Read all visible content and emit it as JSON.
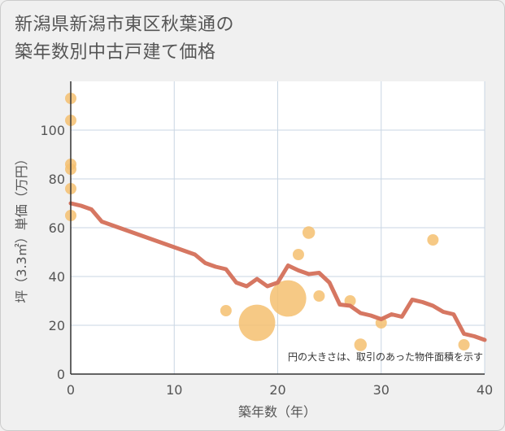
{
  "title_line1": "新潟県新潟市東区秋葉通の",
  "title_line2": "築年数別中古戸建て価格",
  "chart_data": {
    "type": "scatter",
    "title": "新潟県新潟市東区秋葉通の 築年数別中古戸建て価格",
    "xlabel": "築年数（年）",
    "ylabel": "坪（3.3㎡）単価（万円）",
    "xlim": [
      0,
      40
    ],
    "ylim": [
      0,
      120
    ],
    "xticks": [
      0,
      10,
      20,
      30,
      40
    ],
    "yticks": [
      0,
      20,
      40,
      60,
      80,
      100
    ],
    "grid": true,
    "note": "円の大きさは、取引のあった物件面積を示す",
    "colors": {
      "bubble": "#f5c070",
      "line": "#d4705a",
      "plot_bg": "#ffffff",
      "grid": "#c9d6e3"
    },
    "bubbles": [
      {
        "x": 0,
        "y": 113,
        "size": 1
      },
      {
        "x": 0,
        "y": 104,
        "size": 1
      },
      {
        "x": 0,
        "y": 86,
        "size": 1
      },
      {
        "x": 0,
        "y": 84,
        "size": 1
      },
      {
        "x": 0,
        "y": 76,
        "size": 1
      },
      {
        "x": 0,
        "y": 65,
        "size": 1
      },
      {
        "x": 15,
        "y": 26,
        "size": 1
      },
      {
        "x": 18,
        "y": 21,
        "size": 3.2
      },
      {
        "x": 21,
        "y": 31,
        "size": 3.2
      },
      {
        "x": 22,
        "y": 49,
        "size": 1
      },
      {
        "x": 23,
        "y": 58,
        "size": 1.1
      },
      {
        "x": 24,
        "y": 32,
        "size": 1
      },
      {
        "x": 27,
        "y": 30,
        "size": 1
      },
      {
        "x": 28,
        "y": 12,
        "size": 1.1
      },
      {
        "x": 30,
        "y": 21,
        "size": 1
      },
      {
        "x": 35,
        "y": 55,
        "size": 1
      },
      {
        "x": 38,
        "y": 12,
        "size": 1
      }
    ],
    "trend": {
      "x": [
        0,
        1,
        2,
        3,
        4,
        5,
        6,
        7,
        8,
        9,
        10,
        11,
        12,
        13,
        14,
        15,
        16,
        17,
        18,
        19,
        20,
        21,
        22,
        23,
        24,
        25,
        26,
        27,
        28,
        29,
        30,
        31,
        32,
        33,
        34,
        35,
        36,
        37,
        38,
        39,
        40
      ],
      "y": [
        70,
        69,
        67.5,
        62.5,
        61,
        59.5,
        58,
        56.5,
        55,
        53.5,
        52,
        50.5,
        49,
        45.5,
        44,
        43,
        37.5,
        36,
        39,
        36,
        37.5,
        44.5,
        42.5,
        41,
        41.5,
        37.5,
        28.5,
        28,
        25,
        24,
        22.5,
        24.5,
        23.5,
        30.5,
        29.5,
        28,
        25.5,
        24.5,
        16.5,
        15.5,
        14
      ]
    }
  }
}
